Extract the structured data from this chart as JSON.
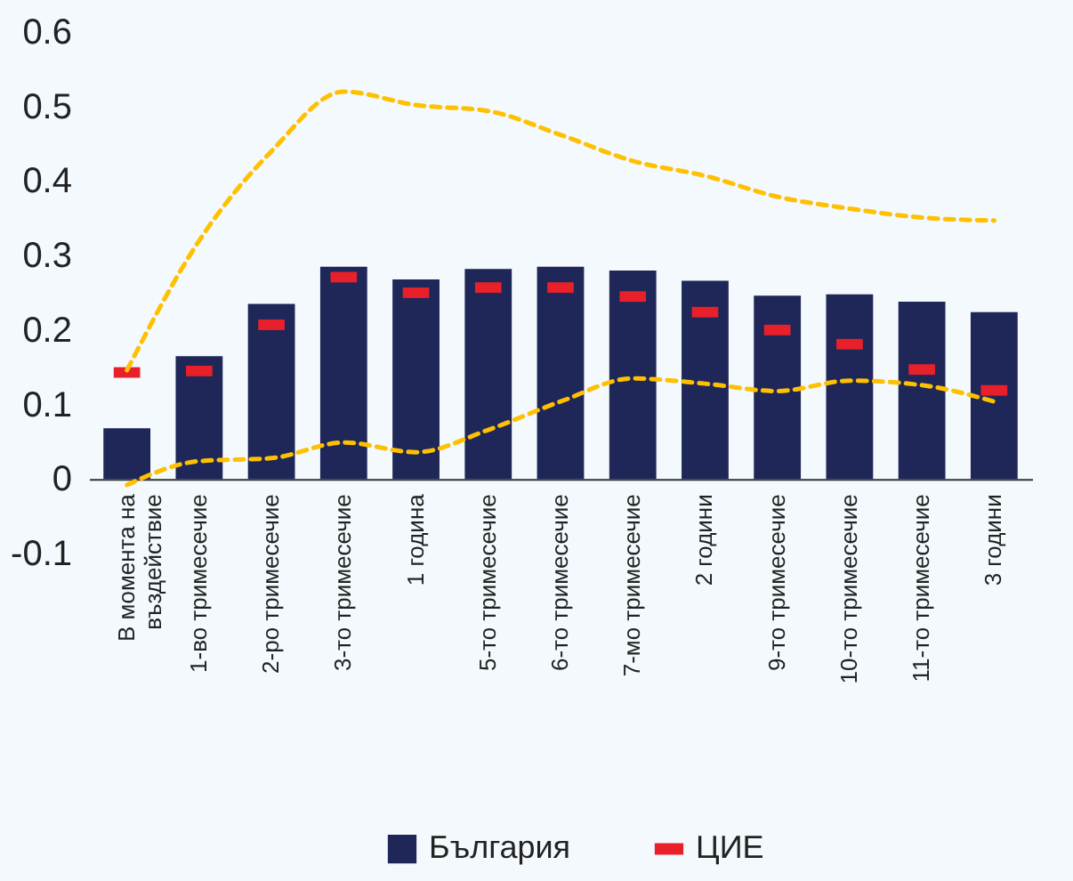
{
  "chart_data": {
    "type": "bar",
    "categories": [
      "В момента на въздействие",
      "1-во тримесечие",
      "2-ро тримесечие",
      "3-то тримесечие",
      "1 година",
      "5-то тримесечие",
      "6-то тримесечие",
      "7-мо тримесечие",
      "2 години",
      "9-то тримесечие",
      "10-то тримесечие",
      "11-то тримесечие",
      "3 години"
    ],
    "series": [
      {
        "name": "България",
        "color": "#1f2759",
        "values": [
          0.068,
          0.165,
          0.235,
          0.285,
          0.268,
          0.282,
          0.285,
          0.28,
          0.266,
          0.246,
          0.248,
          0.238,
          0.224
        ]
      },
      {
        "name": "ЦИЕ",
        "type": "scatter",
        "color": "#e8202a",
        "x": [
          "В момента на въздействие",
          "1-во тримесечие",
          "2-ро тримесечие",
          "3-то тримесечие",
          "1 година",
          "5-то тримесечие",
          "6-то тримесечие",
          "7-мо тримесечие",
          "2 години",
          "9-то тримесечие",
          "10-то тримесечие",
          "11-то тримесечие",
          "3 години"
        ],
        "values": [
          0.143,
          0.145,
          0.207,
          0.271,
          0.25,
          0.257,
          0.257,
          0.245,
          0.224,
          0.2,
          0.181,
          0.147,
          0.119
        ]
      },
      {
        "type": "line",
        "color": "#ffc000",
        "line_style": "dashed",
        "values": [
          0.146,
          0.32,
          0.44,
          0.52,
          0.502,
          0.494,
          0.462,
          0.427,
          0.407,
          0.379,
          0.363,
          0.351,
          0.347
        ]
      },
      {
        "type": "line",
        "color": "#ffc000",
        "line_style": "dashed",
        "values": [
          -0.008,
          0.024,
          0.028,
          0.049,
          0.036,
          0.066,
          0.104,
          0.135,
          0.128,
          0.118,
          0.132,
          0.126,
          0.104
        ]
      }
    ],
    "ylim": [
      -0.1,
      0.6
    ],
    "yticks": [
      -0.1,
      0,
      0.1,
      0.2,
      0.3,
      0.4,
      0.5,
      0.6
    ],
    "grid": false,
    "legend": "bottom"
  }
}
